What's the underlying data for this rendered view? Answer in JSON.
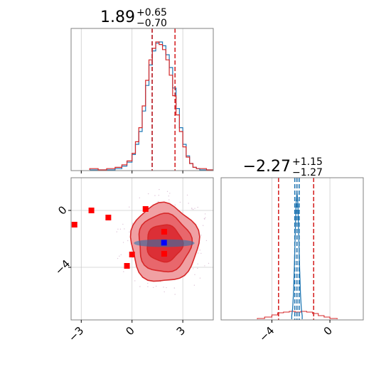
{
  "colors": {
    "red": "#d62728",
    "blue": "#1f77b4",
    "marker_red": "#ff0000",
    "marker_blue": "#0000ff",
    "contour_fill_outer": "#f0a0a3",
    "contour_fill_mid": "#e8676c",
    "contour_fill_inner": "#dc2f36",
    "grid": "#cccccc",
    "spine": "#808080"
  },
  "chart_data": [
    {
      "type": "histogram",
      "panel": "marginal-x",
      "title": {
        "median": "1.89",
        "plus": "+0.65",
        "minus": "−0.70"
      },
      "xlim": [
        -3.6,
        4.8
      ],
      "grid": true,
      "bins_x": [
        -2.5,
        -2.0,
        -1.5,
        -1.0,
        -0.6,
        -0.3,
        0.0,
        0.2,
        0.4,
        0.6,
        0.8,
        1.0,
        1.2,
        1.4,
        1.6,
        1.8,
        2.0,
        2.2,
        2.4,
        2.6,
        2.8,
        3.0,
        3.2,
        3.4,
        3.6,
        3.8,
        4.0,
        4.4,
        4.8
      ],
      "series": [
        {
          "color_key": "blue",
          "density": [
            0.0,
            0.0,
            0.0,
            0.01,
            0.03,
            0.06,
            0.12,
            0.2,
            0.3,
            0.46,
            0.66,
            0.82,
            0.93,
            0.99,
            1.0,
            0.97,
            0.9,
            0.8,
            0.64,
            0.48,
            0.33,
            0.2,
            0.11,
            0.05,
            0.02,
            0.01,
            0.0,
            0.0
          ]
        },
        {
          "color_key": "red",
          "density": [
            0.01,
            0.0,
            0.01,
            0.02,
            0.04,
            0.07,
            0.13,
            0.22,
            0.33,
            0.5,
            0.7,
            0.86,
            0.95,
            1.0,
            0.98,
            0.94,
            0.86,
            0.74,
            0.58,
            0.43,
            0.3,
            0.18,
            0.1,
            0.05,
            0.02,
            0.01,
            0.01,
            0.0
          ]
        }
      ],
      "quantile_lines": [
        {
          "x": 1.19,
          "color_key": "blue"
        },
        {
          "x": 1.19,
          "color_key": "red"
        },
        {
          "x": 2.54,
          "color_key": "red"
        }
      ]
    },
    {
      "type": "scatter",
      "panel": "joint",
      "xlim": [
        -3.6,
        4.8
      ],
      "ylim": [
        -7.7,
        2.3
      ],
      "xticks": [
        -3,
        0,
        3
      ],
      "yticks": [
        0,
        -4
      ],
      "grid": true,
      "contour_levels": [
        {
          "fill_key": "contour_fill_outer",
          "rx": 2.0,
          "ry": 2.75
        },
        {
          "fill_key": "contour_fill_mid",
          "rx": 1.55,
          "ry": 2.05
        },
        {
          "fill_key": "contour_fill_inner",
          "rx": 1.05,
          "ry": 1.3
        }
      ],
      "contour_center": [
        1.9,
        -2.3
      ],
      "blue_ellipse": {
        "cx": 1.9,
        "cy": -2.3,
        "rx": 1.75,
        "ry": 0.22
      },
      "red_markers": [
        [
          -3.4,
          -1.0
        ],
        [
          -2.4,
          0.0
        ],
        [
          -1.4,
          -0.5
        ],
        [
          0.8,
          0.1
        ],
        [
          1.9,
          -1.5
        ],
        [
          0.0,
          -3.1
        ],
        [
          -0.3,
          -3.9
        ],
        [
          1.9,
          -3.05
        ]
      ],
      "blue_marker": [
        1.89,
        -2.27
      ]
    },
    {
      "type": "histogram",
      "panel": "marginal-y",
      "title": {
        "median": "−2.27",
        "plus": "+1.15",
        "minus": "−1.27"
      },
      "xlim": [
        -7.5,
        2.3
      ],
      "xticks": [
        -4,
        0
      ],
      "grid": true,
      "blue_peak": {
        "center": -2.27,
        "width": 0.12
      },
      "red_bins_x": [
        -5.0,
        -4.5,
        -4.0,
        -3.6,
        -3.2,
        -2.8,
        -2.4,
        -2.0,
        -1.6,
        -1.2,
        -0.8,
        -0.4,
        0.0,
        0.5
      ],
      "red_density": [
        0.01,
        0.03,
        0.06,
        0.09,
        0.1,
        0.11,
        0.1,
        0.11,
        0.1,
        0.08,
        0.05,
        0.03,
        0.01
      ],
      "quantile_lines": [
        {
          "x": -3.54,
          "color_key": "red"
        },
        {
          "x": -2.27,
          "color_key": "red"
        },
        {
          "x": -1.12,
          "color_key": "red"
        },
        {
          "x": -2.42,
          "color_key": "blue"
        },
        {
          "x": -2.27,
          "color_key": "blue"
        },
        {
          "x": -2.12,
          "color_key": "blue"
        }
      ]
    }
  ]
}
